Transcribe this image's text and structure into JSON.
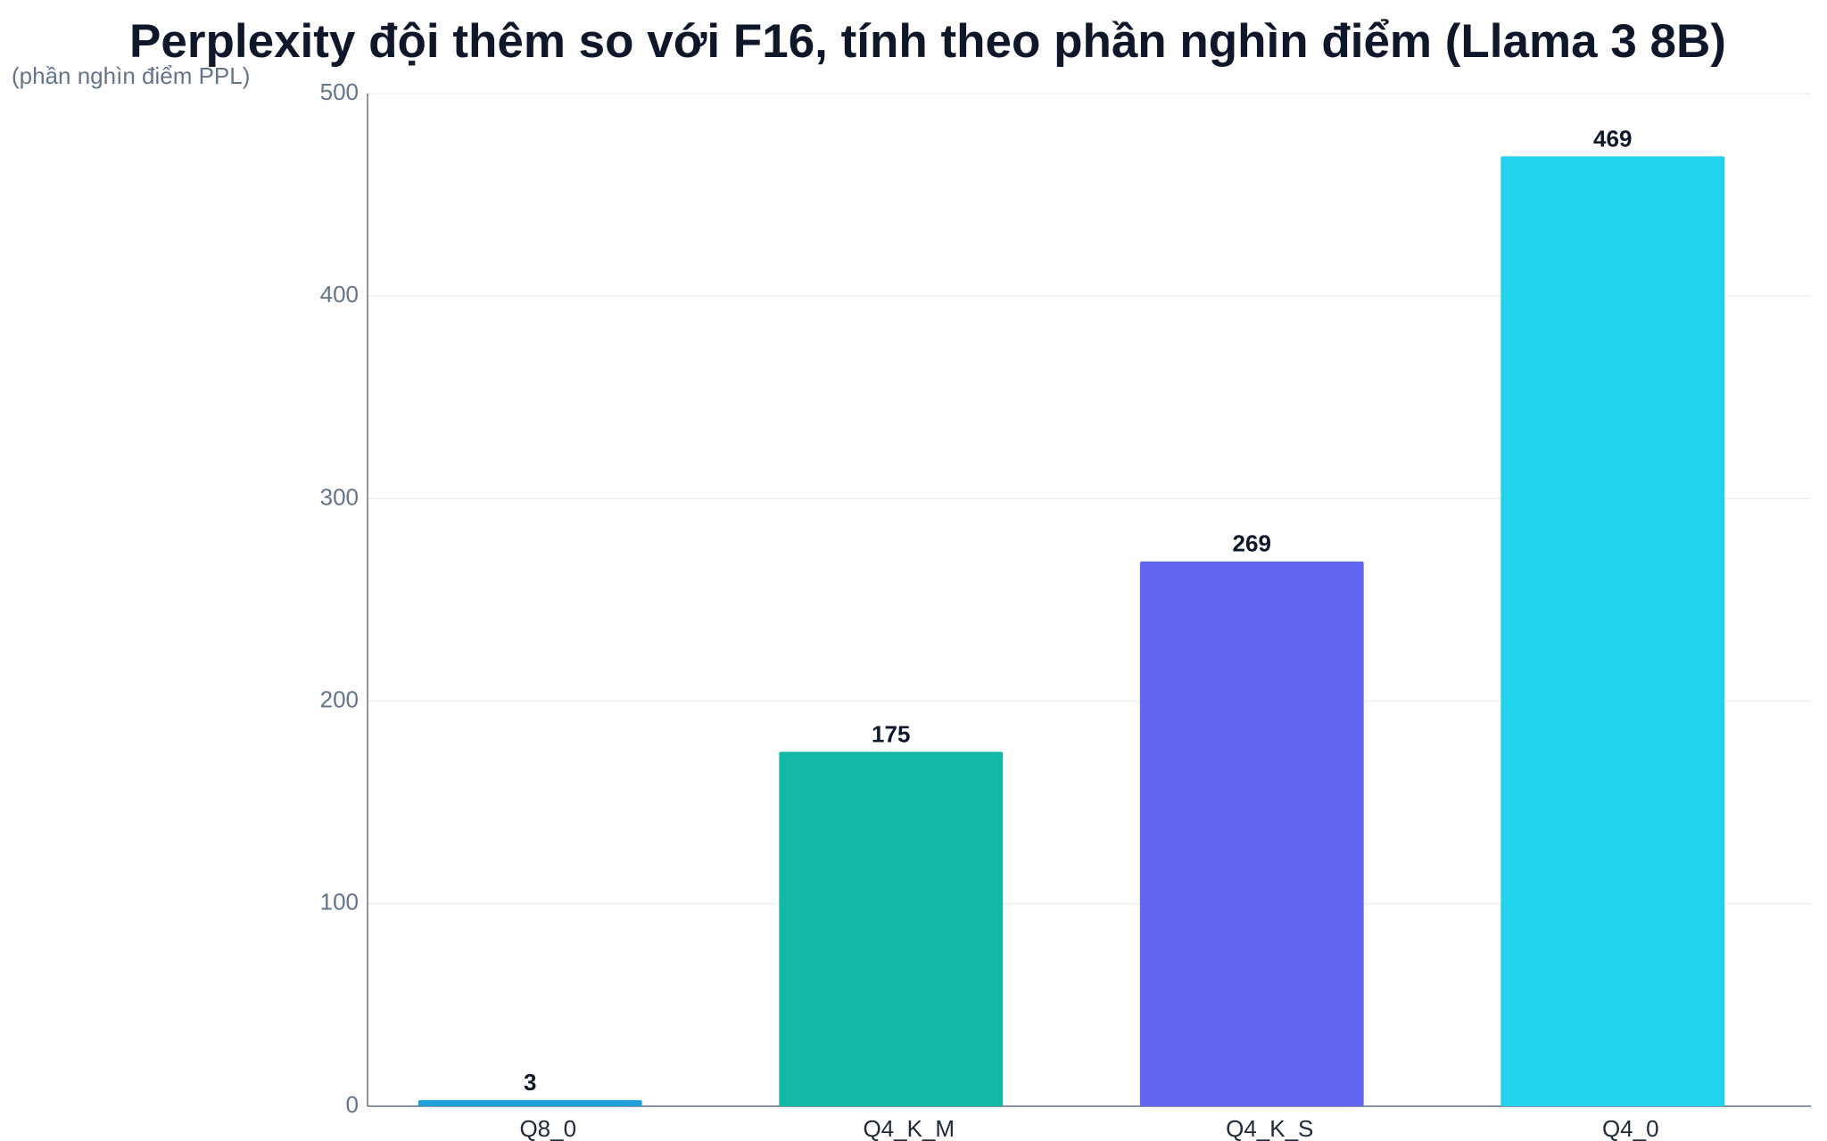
{
  "chart_data": {
    "type": "bar",
    "title": "Perplexity đội thêm so với F16, tính theo phần nghìn điểm (Llama 3 8B)",
    "y_label": "(phần nghìn điểm PPL)",
    "categories": [
      "Q8_0",
      "Q4_K_M",
      "Q4_K_S",
      "Q4_0"
    ],
    "values": [
      3,
      175,
      269,
      469
    ],
    "colors": [
      "#1ea0dc",
      "#14b8a6",
      "#6366f1",
      "#22d3ee"
    ],
    "ylim": [
      0,
      500
    ],
    "yticks": [
      0,
      100,
      200,
      300,
      400,
      500
    ],
    "grid": true
  }
}
